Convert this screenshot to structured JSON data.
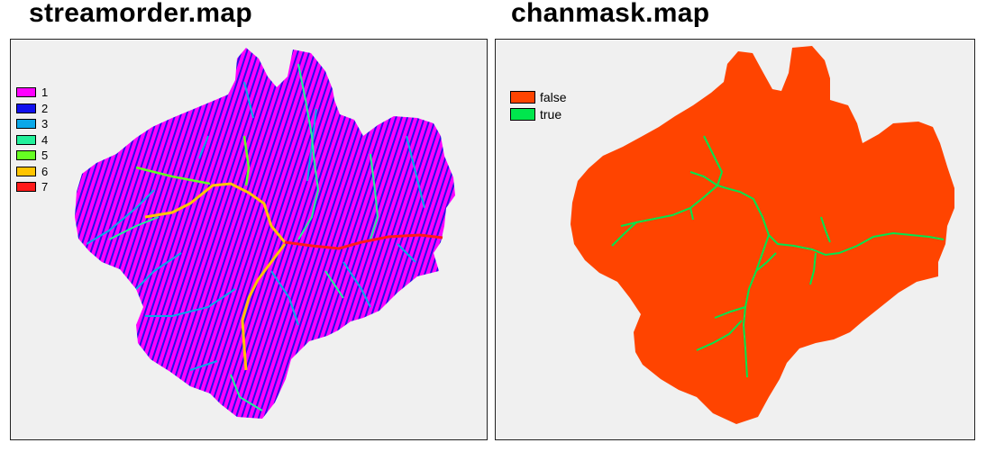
{
  "titles": {
    "left": "streamorder.map",
    "right": "chanmask.map"
  },
  "streamorder_legend": [
    {
      "label": "1",
      "color": "#ff00ff"
    },
    {
      "label": "2",
      "color": "#1010ee"
    },
    {
      "label": "3",
      "color": "#0aa8e8"
    },
    {
      "label": "4",
      "color": "#22f09a"
    },
    {
      "label": "5",
      "color": "#66ff22"
    },
    {
      "label": "6",
      "color": "#ffc400"
    },
    {
      "label": "7",
      "color": "#ff1a1a"
    }
  ],
  "chanmask_legend": [
    {
      "label": "false",
      "color": "#ff4400"
    },
    {
      "label": "true",
      "color": "#00e64d"
    }
  ],
  "colors": {
    "panel_background": "#f0f0f0",
    "order1": "#ff00ff",
    "order2": "#1010ee",
    "false": "#ff4400",
    "true": "#00e64d"
  }
}
